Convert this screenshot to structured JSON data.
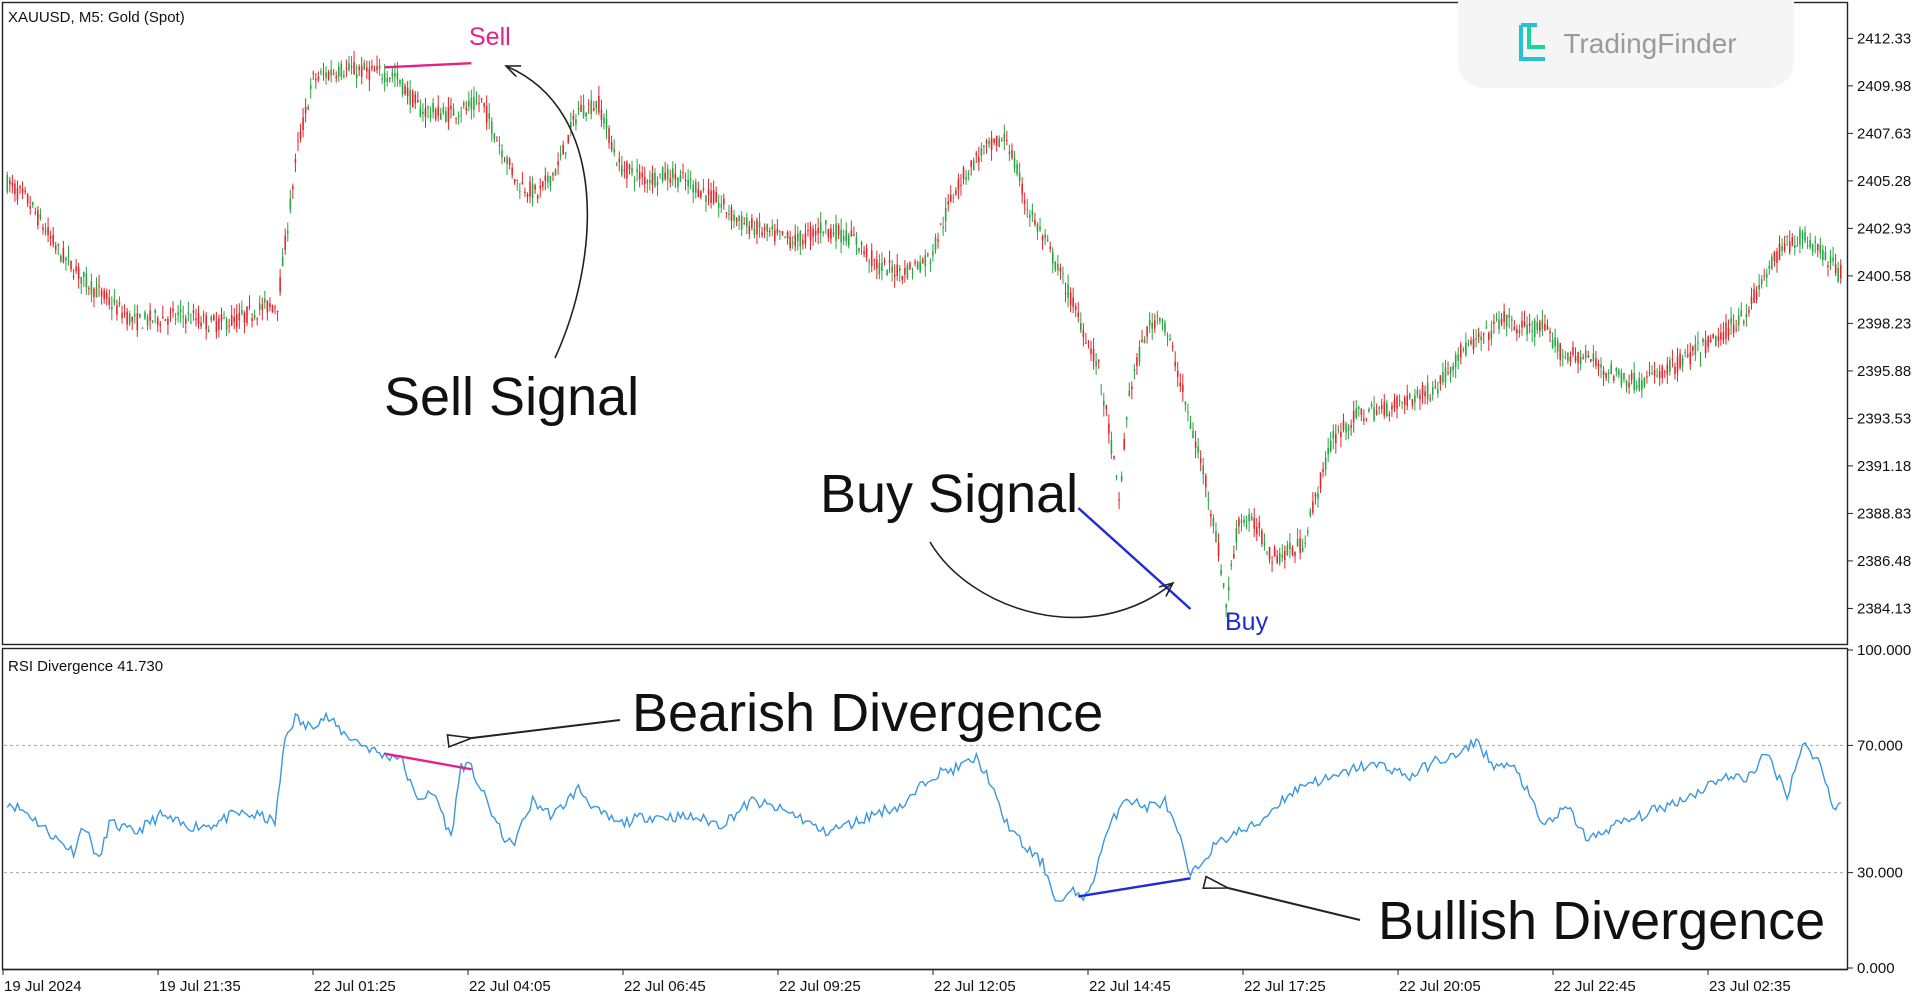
{
  "header": {
    "symbol": "XAUUSD, M5:  Gold (Spot)",
    "brand": "TradingFinder",
    "indicator_label": "RSI Divergence 41.730"
  },
  "annotations": {
    "sell_marker": "Sell",
    "buy_marker": "Buy",
    "sell_signal": "Sell Signal",
    "buy_signal": "Buy Signal",
    "bearish": "Bearish Divergence",
    "bullish": "Bullish Divergence"
  },
  "colors": {
    "bull": "#26a541",
    "bear": "#e0262c",
    "sell": "#e5208a",
    "buy": "#1f2bd6",
    "rsi": "#3a98dc"
  },
  "chart_data": [
    {
      "type": "candlestick",
      "title": "XAUUSD, M5:  Gold (Spot)",
      "ylim": [
        2382.37,
        2414.03
      ],
      "y_ticks": [
        "2412.33",
        "2409.98",
        "2407.63",
        "2405.28",
        "2402.93",
        "2400.58",
        "2398.23",
        "2395.88",
        "2393.53",
        "2391.18",
        "2388.83",
        "2386.48",
        "2384.13"
      ],
      "x_ticks": [
        "19 Jul 2024",
        "19 Jul 21:35",
        "22 Jul 01:25",
        "22 Jul 04:05",
        "22 Jul 06:45",
        "22 Jul 09:25",
        "22 Jul 12:05",
        "22 Jul 14:45",
        "22 Jul 17:25",
        "22 Jul 20:05",
        "22 Jul 22:45",
        "23 Jul 02:35"
      ],
      "price_path": [
        [
          0,
          2405.2
        ],
        [
          8,
          2404.3
        ],
        [
          20,
          2401.8
        ],
        [
          30,
          2400.4
        ],
        [
          40,
          2399.3
        ],
        [
          50,
          2398.3
        ],
        [
          60,
          2398.5
        ],
        [
          70,
          2398.6
        ],
        [
          80,
          2398.2
        ],
        [
          90,
          2398.4
        ],
        [
          100,
          2399.0
        ],
        [
          106,
          2399.2
        ],
        [
          114,
          2407.0
        ],
        [
          120,
          2410.3
        ],
        [
          130,
          2410.8
        ],
        [
          140,
          2410.7
        ],
        [
          152,
          2410.5
        ],
        [
          162,
          2408.8
        ],
        [
          172,
          2408.6
        ],
        [
          181,
          2408.9
        ],
        [
          186,
          2409.2
        ],
        [
          192,
          2407.4
        ],
        [
          200,
          2405.2
        ],
        [
          208,
          2404.6
        ],
        [
          216,
          2406.0
        ],
        [
          224,
          2408.8
        ],
        [
          232,
          2409.1
        ],
        [
          240,
          2406.0
        ],
        [
          250,
          2405.4
        ],
        [
          260,
          2405.6
        ],
        [
          270,
          2405.0
        ],
        [
          278,
          2404.3
        ],
        [
          288,
          2403.2
        ],
        [
          300,
          2402.6
        ],
        [
          310,
          2402.3
        ],
        [
          320,
          2403.0
        ],
        [
          332,
          2402.4
        ],
        [
          342,
          2401.0
        ],
        [
          352,
          2400.8
        ],
        [
          362,
          2401.5
        ],
        [
          372,
          2405.0
        ],
        [
          382,
          2406.7
        ],
        [
          392,
          2407.4
        ],
        [
          400,
          2404.0
        ],
        [
          410,
          2401.5
        ],
        [
          420,
          2398.6
        ],
        [
          428,
          2396.0
        ],
        [
          433,
          2392.2
        ],
        [
          436,
          2389.4
        ],
        [
          440,
          2394.8
        ],
        [
          446,
          2397.6
        ],
        [
          452,
          2398.8
        ],
        [
          458,
          2396.4
        ],
        [
          464,
          2393.2
        ],
        [
          470,
          2390.5
        ],
        [
          475,
          2387.0
        ],
        [
          478,
          2384.3
        ],
        [
          483,
          2388.6
        ],
        [
          490,
          2388.2
        ],
        [
          496,
          2386.7
        ],
        [
          502,
          2386.9
        ],
        [
          508,
          2387.3
        ],
        [
          514,
          2390.0
        ],
        [
          520,
          2392.6
        ],
        [
          530,
          2393.7
        ],
        [
          540,
          2394.0
        ],
        [
          550,
          2394.5
        ],
        [
          560,
          2395.0
        ],
        [
          570,
          2396.8
        ],
        [
          580,
          2397.6
        ],
        [
          586,
          2398.5
        ],
        [
          592,
          2398.0
        ],
        [
          602,
          2398.0
        ],
        [
          610,
          2396.7
        ],
        [
          620,
          2396.5
        ],
        [
          630,
          2395.7
        ],
        [
          640,
          2395.3
        ],
        [
          652,
          2396.0
        ],
        [
          662,
          2396.8
        ],
        [
          672,
          2397.6
        ],
        [
          682,
          2398.8
        ],
        [
          690,
          2400.7
        ],
        [
          696,
          2402.0
        ],
        [
          704,
          2402.5
        ],
        [
          712,
          2401.8
        ],
        [
          718,
          2400.7
        ]
      ],
      "signals": [
        {
          "name": "Sell",
          "from": [
            148,
            2410.9
          ],
          "to": [
            182,
            2411.1
          ]
        },
        {
          "name": "Buy",
          "from": [
            420,
            2389.1
          ],
          "to": [
            464,
            2384.1
          ]
        }
      ]
    },
    {
      "type": "line",
      "title": "RSI Divergence 41.730",
      "ylim": [
        0,
        100
      ],
      "y_ticks": [
        "100.000",
        "70.000",
        "30.000",
        "0.000"
      ],
      "levels": [
        70,
        30
      ],
      "rsi_path": [
        [
          0,
          52.3
        ],
        [
          8,
          48.7
        ],
        [
          20,
          40.1
        ],
        [
          26,
          36.7
        ],
        [
          30,
          45.2
        ],
        [
          36,
          33.5
        ],
        [
          40,
          45.7
        ],
        [
          50,
          42.5
        ],
        [
          60,
          48.0
        ],
        [
          70,
          44.5
        ],
        [
          80,
          45.0
        ],
        [
          90,
          48.6
        ],
        [
          100,
          47.6
        ],
        [
          105,
          45.7
        ],
        [
          109,
          72.4
        ],
        [
          113,
          78.9
        ],
        [
          117,
          75.7
        ],
        [
          125,
          79.0
        ],
        [
          132,
          73.8
        ],
        [
          140,
          70.0
        ],
        [
          148,
          66.6
        ],
        [
          154,
          66.8
        ],
        [
          160,
          53.8
        ],
        [
          168,
          54.4
        ],
        [
          174,
          40.8
        ],
        [
          178,
          64.0
        ],
        [
          182,
          62.7
        ],
        [
          188,
          52.3
        ],
        [
          194,
          41.9
        ],
        [
          198,
          38.3
        ],
        [
          206,
          52.5
        ],
        [
          214,
          47.8
        ],
        [
          224,
          56.4
        ],
        [
          232,
          48.8
        ],
        [
          240,
          45.3
        ],
        [
          250,
          47.6
        ],
        [
          260,
          47.6
        ],
        [
          270,
          47.3
        ],
        [
          280,
          45.1
        ],
        [
          292,
          52.5
        ],
        [
          302,
          50.1
        ],
        [
          310,
          47.8
        ],
        [
          320,
          42.7
        ],
        [
          332,
          45.6
        ],
        [
          342,
          49.2
        ],
        [
          352,
          51.3
        ],
        [
          362,
          60.5
        ],
        [
          372,
          62.7
        ],
        [
          380,
          65.9
        ],
        [
          385,
          59.5
        ],
        [
          390,
          48.0
        ],
        [
          398,
          38.8
        ],
        [
          406,
          33.0
        ],
        [
          412,
          20.3
        ],
        [
          418,
          23.8
        ],
        [
          424,
          22.6
        ],
        [
          430,
          39.9
        ],
        [
          438,
          53.9
        ],
        [
          446,
          50.5
        ],
        [
          454,
          52.3
        ],
        [
          460,
          40.1
        ],
        [
          464,
          28.5
        ],
        [
          472,
          37.4
        ],
        [
          480,
          41.9
        ],
        [
          490,
          45.0
        ],
        [
          500,
          53.0
        ],
        [
          510,
          58.5
        ],
        [
          520,
          59.5
        ],
        [
          530,
          63.4
        ],
        [
          540,
          63.7
        ],
        [
          550,
          60.0
        ],
        [
          560,
          65.1
        ],
        [
          570,
          67.0
        ],
        [
          576,
          71.8
        ],
        [
          582,
          64.1
        ],
        [
          592,
          62.5
        ],
        [
          602,
          44.8
        ],
        [
          612,
          50.3
        ],
        [
          620,
          40.1
        ],
        [
          630,
          44.8
        ],
        [
          640,
          47.6
        ],
        [
          652,
          51.5
        ],
        [
          662,
          54.9
        ],
        [
          672,
          60.0
        ],
        [
          682,
          59.6
        ],
        [
          690,
          67.4
        ],
        [
          698,
          54.6
        ],
        [
          704,
          70.3
        ],
        [
          710,
          65.9
        ],
        [
          716,
          51.3
        ]
      ],
      "divergences": [
        {
          "name": "Bearish",
          "from": [
            148,
            67.4
          ],
          "to": [
            182,
            62.5
          ]
        },
        {
          "name": "Bullish",
          "from": [
            420,
            22.5
          ],
          "to": [
            464,
            28.2
          ]
        }
      ]
    }
  ]
}
